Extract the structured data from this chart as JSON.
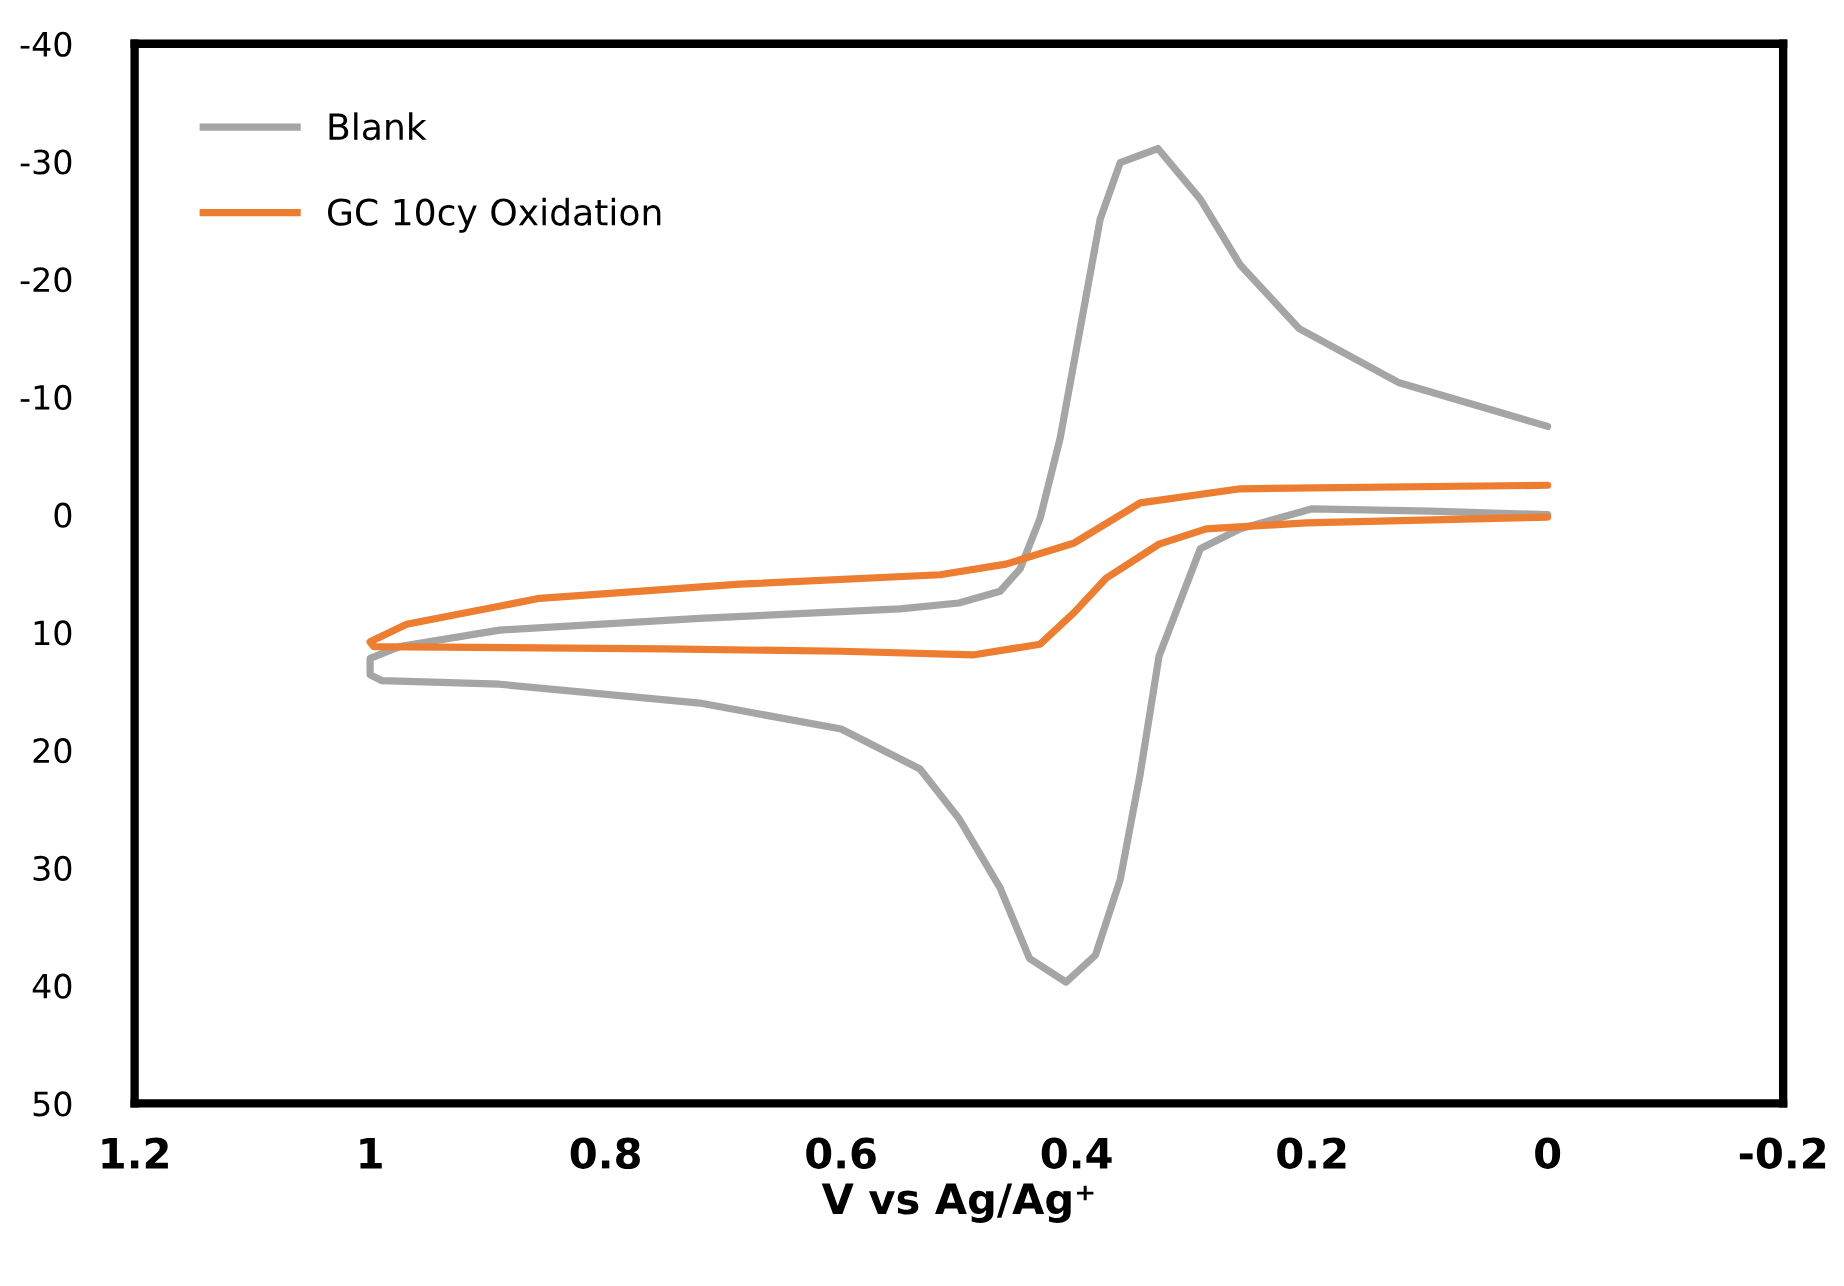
{
  "chart_data": {
    "type": "line",
    "xlabel": "V vs Ag/Ag⁺",
    "xlim": [
      1.2,
      -0.2
    ],
    "xticks": [
      1.2,
      1,
      0.8,
      0.6,
      0.4,
      0.2,
      0,
      -0.2
    ],
    "ylim": [
      50,
      -40
    ],
    "yticks": [
      -40,
      -30,
      -20,
      -10,
      0,
      10,
      20,
      30,
      40,
      50
    ],
    "grid": false,
    "legend": "top left",
    "marker": "none",
    "line_style": "solid",
    "series": [
      {
        "name": "Blank",
        "color": "#a5a5a5",
        "x": [
          0,
          0.1,
          0.2,
          0.261,
          0.295,
          0.33,
          0.346,
          0.363,
          0.384,
          0.409,
          0.44,
          0.465,
          0.5,
          0.533,
          0.6,
          0.72,
          0.89,
          0.99,
          1.0,
          1.0,
          0.975,
          0.89,
          0.72,
          0.55,
          0.5,
          0.465,
          0.448,
          0.431,
          0.414,
          0.397,
          0.38,
          0.363,
          0.331,
          0.295,
          0.261,
          0.211,
          0.126,
          0
        ],
        "values": [
          0,
          -0.3,
          -0.5,
          1.2,
          2.9,
          12,
          22,
          31,
          37.4,
          39.7,
          37.7,
          31.7,
          25.8,
          21.6,
          18.2,
          16,
          14.4,
          14.1,
          13.6,
          12.2,
          11.2,
          9.8,
          8.8,
          8,
          7.5,
          6.5,
          4.6,
          0.3,
          -6.5,
          -15.8,
          -25.1,
          -29.9,
          -31.1,
          -26.8,
          -21.2,
          -15.8,
          -11.2,
          -7.5
        ]
      },
      {
        "name": "GC 10cy Oxidation",
        "color": "#ed7d31",
        "x": [
          0,
          0.205,
          0.29,
          0.33,
          0.375,
          0.402,
          0.431,
          0.487,
          0.6,
          0.75,
          0.997,
          1.0,
          0.969,
          0.856,
          0.686,
          0.516,
          0.46,
          0.402,
          0.346,
          0.261,
          0
        ],
        "values": [
          0.2,
          0.7,
          1.2,
          2.5,
          5.4,
          8.3,
          11,
          11.9,
          11.6,
          11.4,
          11.2,
          10.8,
          9.3,
          7.1,
          5.9,
          5.1,
          4.2,
          2.4,
          -1,
          -2.2,
          -2.5
        ]
      }
    ]
  }
}
